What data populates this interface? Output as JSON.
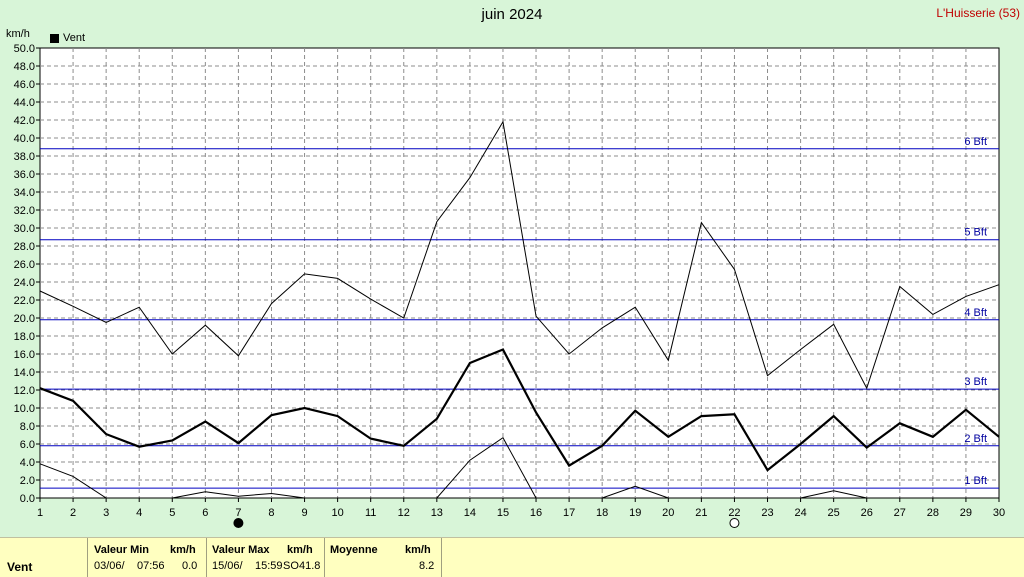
{
  "chart_data": {
    "type": "line",
    "title": "juin 2024",
    "station": "L'Huisserie (53)",
    "ylabel": "km/h",
    "legend": [
      "Vent"
    ],
    "x": [
      1,
      2,
      3,
      4,
      5,
      6,
      7,
      8,
      9,
      10,
      11,
      12,
      13,
      14,
      15,
      16,
      17,
      18,
      19,
      20,
      21,
      22,
      23,
      24,
      25,
      26,
      27,
      28,
      29,
      30
    ],
    "ylim": [
      0,
      50
    ],
    "yticks": [
      "0.0",
      "2.0",
      "4.0",
      "6.0",
      "8.0",
      "10.0",
      "12.0",
      "14.0",
      "16.0",
      "18.0",
      "20.0",
      "22.0",
      "24.0",
      "26.0",
      "28.0",
      "30.0",
      "32.0",
      "34.0",
      "36.0",
      "38.0",
      "40.0",
      "42.0",
      "44.0",
      "46.0",
      "48.0",
      "50.0"
    ],
    "grid": true,
    "beaufort": [
      {
        "label": "1 Bft",
        "value": 1.1
      },
      {
        "label": "2 Bft",
        "value": 5.8
      },
      {
        "label": "3 Bft",
        "value": 12.1
      },
      {
        "label": "4 Bft",
        "value": 19.8
      },
      {
        "label": "5 Bft",
        "value": 28.7
      },
      {
        "label": "6 Bft",
        "value": 38.8
      }
    ],
    "series": [
      {
        "name": "Vent",
        "role": "max",
        "values": [
          23.0,
          21.3,
          19.5,
          21.2,
          16.0,
          19.2,
          15.8,
          21.6,
          24.9,
          24.4,
          22.1,
          20.0,
          30.7,
          35.6,
          41.8,
          20.2,
          16.0,
          18.9,
          21.2,
          15.3,
          30.6,
          25.4,
          13.6,
          16.5,
          19.3,
          12.2,
          23.5,
          20.4,
          22.4,
          23.7
        ]
      },
      {
        "name": "Vent",
        "role": "mean",
        "values": [
          12.2,
          10.8,
          7.1,
          5.7,
          6.4,
          8.5,
          6.1,
          9.2,
          10.0,
          9.1,
          6.6,
          5.8,
          8.8,
          15.0,
          16.5,
          9.5,
          3.6,
          5.8,
          9.7,
          6.8,
          9.1,
          9.3,
          3.1,
          6.0,
          9.1,
          5.6,
          8.3,
          6.8,
          9.8,
          6.8
        ]
      },
      {
        "name": "Vent",
        "role": "min",
        "values": [
          3.8,
          2.4,
          0.0,
          0.0,
          0.0,
          0.7,
          0.2,
          0.5,
          0.0,
          0.0,
          0.0,
          0.0,
          0.0,
          4.2,
          6.7,
          0.0,
          0.0,
          0.0,
          1.3,
          0.0,
          0.0,
          0.0,
          0.0,
          0.0,
          0.8,
          0.0,
          0.0,
          0.0,
          0.0,
          0.0
        ]
      }
    ],
    "moon_phases": [
      {
        "day": 7,
        "phase": "new"
      },
      {
        "day": 22,
        "phase": "full"
      }
    ],
    "colors": {
      "background": "#d8f5d8",
      "grid": "#8c8c8c",
      "beaufort": "#0000c0",
      "series": "#000000",
      "stats_panel": "#ffffc0"
    }
  },
  "stats": {
    "row_label": "Vent",
    "min": {
      "title": "Valeur Min",
      "unit": "km/h",
      "date": "03/06/",
      "time": "07:56",
      "value": "0.0"
    },
    "max": {
      "title": "Valeur Max",
      "unit": "km/h",
      "date": "15/06/",
      "time": "15:59",
      "dir": "SO",
      "value": "41.8"
    },
    "mean": {
      "title": "Moyenne",
      "unit": "km/h",
      "value": "8.2"
    }
  }
}
